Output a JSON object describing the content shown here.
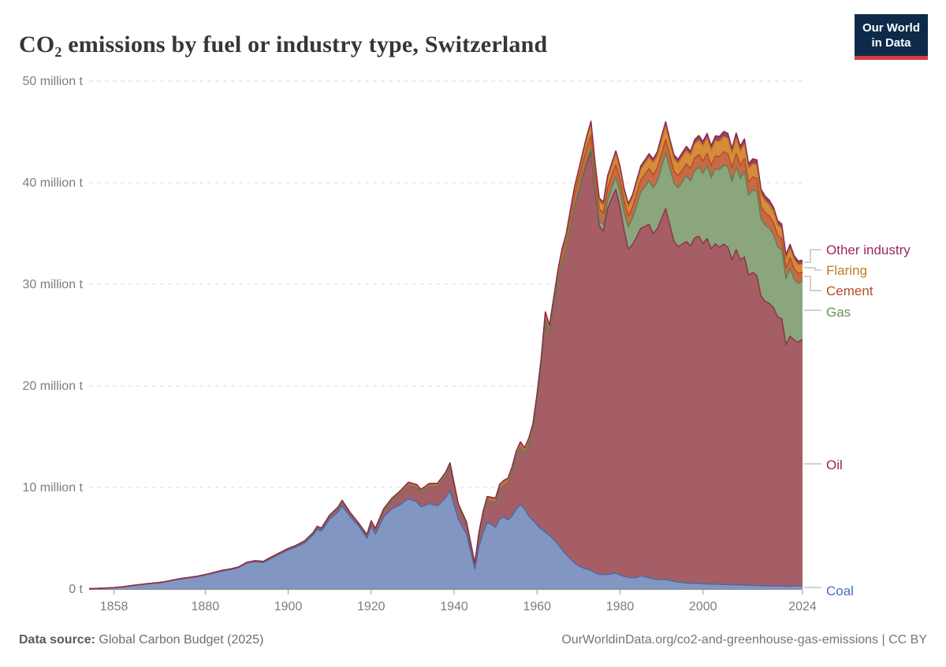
{
  "header": {
    "title": "CO₂ emissions by fuel or industry type, Switzerland"
  },
  "logo": {
    "line1": "Our World",
    "line2": "in Data"
  },
  "footer": {
    "source_label": "Data source:",
    "source_value": "Global Carbon Budget (2025)",
    "link": "OurWorldinData.org/co2-and-greenhouse-gas-emissions",
    "separator": " | ",
    "license": "CC BY"
  },
  "chart_data": {
    "type": "area",
    "stacked": true,
    "title": "CO₂ emissions by fuel or industry type, Switzerland",
    "unit": "million t",
    "ylim": [
      0,
      50
    ],
    "grid": true,
    "legend_position": "right",
    "yticks": [
      {
        "value": 0,
        "label": "0 t"
      },
      {
        "value": 10,
        "label": "10 million t"
      },
      {
        "value": 20,
        "label": "20 million t"
      },
      {
        "value": 30,
        "label": "30 million t"
      },
      {
        "value": 40,
        "label": "40 million t"
      },
      {
        "value": 50,
        "label": "50 million t"
      }
    ],
    "xticks": [
      {
        "value": 1858,
        "label": "1858"
      },
      {
        "value": 1880,
        "label": "1880"
      },
      {
        "value": 1900,
        "label": "1900"
      },
      {
        "value": 1920,
        "label": "1920"
      },
      {
        "value": 1940,
        "label": "1940"
      },
      {
        "value": 1960,
        "label": "1960"
      },
      {
        "value": 1980,
        "label": "1980"
      },
      {
        "value": 2000,
        "label": "2000"
      },
      {
        "value": 2024,
        "label": "2024"
      }
    ],
    "x": [
      1852,
      1854,
      1856,
      1858,
      1860,
      1862,
      1864,
      1866,
      1868,
      1870,
      1872,
      1874,
      1876,
      1878,
      1880,
      1882,
      1884,
      1886,
      1888,
      1890,
      1892,
      1894,
      1896,
      1898,
      1900,
      1902,
      1904,
      1906,
      1907,
      1908,
      1910,
      1912,
      1913,
      1915,
      1917,
      1919,
      1920,
      1921,
      1923,
      1925,
      1927,
      1929,
      1931,
      1932,
      1934,
      1936,
      1938,
      1939,
      1941,
      1943,
      1945,
      1946,
      1947,
      1948,
      1950,
      1951,
      1952,
      1953,
      1954,
      1955,
      1956,
      1957,
      1958,
      1959,
      1960,
      1961,
      1962,
      1963,
      1964,
      1965,
      1966,
      1967,
      1968,
      1969,
      1970,
      1971,
      1972,
      1973,
      1974,
      1975,
      1976,
      1977,
      1978,
      1979,
      1980,
      1981,
      1982,
      1983,
      1984,
      1985,
      1986,
      1987,
      1988,
      1989,
      1990,
      1991,
      1992,
      1993,
      1994,
      1995,
      1996,
      1997,
      1998,
      1999,
      2000,
      2001,
      2002,
      2003,
      2004,
      2005,
      2006,
      2007,
      2008,
      2009,
      2010,
      2011,
      2012,
      2013,
      2014,
      2015,
      2016,
      2017,
      2018,
      2019,
      2020,
      2021,
      2022,
      2023,
      2024
    ],
    "series": [
      {
        "name": "Coal",
        "fill": "#8296c2",
        "stroke": "#51689f",
        "label_color": "#4a6cbe",
        "values": [
          0.03,
          0.06,
          0.09,
          0.13,
          0.22,
          0.32,
          0.42,
          0.52,
          0.58,
          0.68,
          0.85,
          1.0,
          1.1,
          1.22,
          1.38,
          1.58,
          1.78,
          1.92,
          2.1,
          2.55,
          2.7,
          2.62,
          3.05,
          3.45,
          3.85,
          4.15,
          4.55,
          5.3,
          5.9,
          5.7,
          6.9,
          7.6,
          8.2,
          7.1,
          6.2,
          5.0,
          6.2,
          5.4,
          7.1,
          7.9,
          8.3,
          8.9,
          8.6,
          8.1,
          8.4,
          8.2,
          9.0,
          9.7,
          6.9,
          5.4,
          2.0,
          4.2,
          5.6,
          6.6,
          6.1,
          6.9,
          7.1,
          6.8,
          7.2,
          7.9,
          8.3,
          7.9,
          7.2,
          6.8,
          6.3,
          5.9,
          5.6,
          5.3,
          4.9,
          4.4,
          3.9,
          3.4,
          3.0,
          2.6,
          2.3,
          2.1,
          1.95,
          1.85,
          1.6,
          1.45,
          1.4,
          1.45,
          1.5,
          1.55,
          1.4,
          1.25,
          1.15,
          1.1,
          1.15,
          1.3,
          1.2,
          1.1,
          1.0,
          0.95,
          0.95,
          0.95,
          0.85,
          0.75,
          0.7,
          0.65,
          0.6,
          0.58,
          0.56,
          0.54,
          0.52,
          0.5,
          0.48,
          0.48,
          0.46,
          0.45,
          0.44,
          0.42,
          0.42,
          0.4,
          0.4,
          0.38,
          0.36,
          0.35,
          0.33,
          0.32,
          0.32,
          0.3,
          0.3,
          0.3,
          0.26,
          0.28,
          0.3,
          0.3,
          0.3
        ]
      },
      {
        "name": "Oil",
        "fill": "#a55e66",
        "stroke": "#8d3544",
        "label_color": "#8d2f41",
        "values": [
          0,
          0,
          0,
          0,
          0,
          0.01,
          0.01,
          0.01,
          0.02,
          0.02,
          0.02,
          0.03,
          0.03,
          0.03,
          0.04,
          0.04,
          0.05,
          0.05,
          0.06,
          0.06,
          0.07,
          0.07,
          0.08,
          0.09,
          0.1,
          0.12,
          0.14,
          0.17,
          0.19,
          0.2,
          0.28,
          0.33,
          0.38,
          0.3,
          0.22,
          0.28,
          0.4,
          0.45,
          0.6,
          0.8,
          1.05,
          1.25,
          1.35,
          1.4,
          1.65,
          1.85,
          2.1,
          2.3,
          1.2,
          0.9,
          0.4,
          1.1,
          1.7,
          2.1,
          2.4,
          2.9,
          3.1,
          3.6,
          4.3,
          5.1,
          5.6,
          5.4,
          7.0,
          8.8,
          12.2,
          16.0,
          20.8,
          19.8,
          22.8,
          25.8,
          28.2,
          30.0,
          32.5,
          35.0,
          36.8,
          38.5,
          40.0,
          41.2,
          37.5,
          34.3,
          33.8,
          36.0,
          37.0,
          37.8,
          36.2,
          34.0,
          32.3,
          32.8,
          33.5,
          34.2,
          34.5,
          34.8,
          34.0,
          34.5,
          35.5,
          36.5,
          35.0,
          33.5,
          33.0,
          33.3,
          33.6,
          33.2,
          34.0,
          34.2,
          33.5,
          34.0,
          33.0,
          33.5,
          33.2,
          33.5,
          33.2,
          32.0,
          33.0,
          32.0,
          32.3,
          30.5,
          30.8,
          30.5,
          28.5,
          28.0,
          27.8,
          27.4,
          26.5,
          26.3,
          23.8,
          24.6,
          24.2,
          24.0,
          24.3
        ]
      },
      {
        "name": "Gas",
        "fill": "#8ba57d",
        "stroke": "#5e8253",
        "label_color": "#659158",
        "values": [
          0,
          0,
          0,
          0,
          0,
          0,
          0,
          0,
          0,
          0,
          0,
          0,
          0,
          0,
          0,
          0,
          0,
          0,
          0,
          0,
          0,
          0,
          0,
          0,
          0,
          0,
          0,
          0,
          0,
          0,
          0,
          0,
          0,
          0,
          0,
          0,
          0,
          0,
          0,
          0,
          0,
          0,
          0,
          0,
          0,
          0,
          0,
          0,
          0,
          0,
          0,
          0,
          0,
          0,
          0,
          0,
          0,
          0,
          0,
          0,
          0,
          0,
          0,
          0,
          0,
          0,
          0,
          0,
          0,
          0,
          0,
          0,
          0.05,
          0.08,
          0.1,
          0.15,
          0.2,
          0.3,
          0.4,
          0.5,
          0.65,
          0.8,
          1.0,
          1.2,
          1.5,
          1.8,
          2.2,
          2.6,
          3.1,
          3.6,
          3.9,
          4.3,
          4.5,
          4.7,
          5.1,
          5.5,
          5.6,
          5.7,
          5.8,
          6.1,
          6.5,
          6.4,
          6.6,
          6.8,
          6.9,
          7.2,
          7.0,
          7.4,
          7.6,
          7.8,
          7.9,
          7.7,
          8.1,
          8.0,
          8.4,
          7.9,
          8.1,
          8.3,
          7.6,
          7.5,
          7.4,
          7.2,
          6.9,
          6.8,
          6.5,
          6.7,
          6.0,
          5.8,
          5.7
        ]
      },
      {
        "name": "Cement",
        "fill": "#c96a44",
        "stroke": "#b14f25",
        "label_color": "#b54c26",
        "values": [
          0,
          0,
          0,
          0,
          0,
          0,
          0,
          0,
          0,
          0,
          0,
          0,
          0,
          0,
          0,
          0,
          0,
          0,
          0,
          0.02,
          0.02,
          0.03,
          0.03,
          0.04,
          0.05,
          0.05,
          0.06,
          0.08,
          0.09,
          0.09,
          0.11,
          0.13,
          0.15,
          0.1,
          0.07,
          0.08,
          0.12,
          0.12,
          0.18,
          0.24,
          0.3,
          0.36,
          0.34,
          0.3,
          0.34,
          0.35,
          0.4,
          0.42,
          0.3,
          0.28,
          0.15,
          0.28,
          0.35,
          0.4,
          0.45,
          0.5,
          0.5,
          0.52,
          0.55,
          0.58,
          0.6,
          0.6,
          0.62,
          0.66,
          0.72,
          0.8,
          0.88,
          0.86,
          0.92,
          0.95,
          1.0,
          1.05,
          1.05,
          1.1,
          1.15,
          1.2,
          1.25,
          1.35,
          1.25,
          1.15,
          1.15,
          1.2,
          1.2,
          1.25,
          1.2,
          1.15,
          1.1,
          1.1,
          1.15,
          1.2,
          1.2,
          1.2,
          1.25,
          1.3,
          1.3,
          1.3,
          1.25,
          1.2,
          1.2,
          1.2,
          1.15,
          1.2,
          1.25,
          1.25,
          1.2,
          1.2,
          1.2,
          1.25,
          1.3,
          1.3,
          1.3,
          1.35,
          1.35,
          1.3,
          1.3,
          1.3,
          1.3,
          1.3,
          1.25,
          1.2,
          1.2,
          1.15,
          1.15,
          1.1,
          1.05,
          1.05,
          1.0,
          0.95,
          0.9
        ]
      },
      {
        "name": "Flaring",
        "fill": "#d68c3c",
        "stroke": "#c07a1e",
        "label_color": "#bd7c24",
        "values": [
          0,
          0,
          0,
          0,
          0,
          0,
          0,
          0,
          0,
          0,
          0,
          0,
          0,
          0,
          0,
          0,
          0,
          0,
          0,
          0,
          0,
          0,
          0,
          0,
          0,
          0,
          0,
          0,
          0,
          0,
          0,
          0,
          0,
          0,
          0,
          0,
          0,
          0,
          0,
          0,
          0,
          0,
          0,
          0,
          0,
          0,
          0,
          0,
          0,
          0,
          0,
          0,
          0,
          0,
          0,
          0,
          0,
          0,
          0,
          0,
          0,
          0,
          0,
          0,
          0,
          0,
          0,
          0,
          0,
          0.1,
          0.2,
          0.3,
          0.4,
          0.5,
          0.6,
          0.7,
          0.9,
          1.0,
          0.9,
          0.8,
          0.8,
          0.9,
          0.9,
          1.0,
          1.0,
          0.9,
          0.9,
          0.9,
          1.0,
          1.0,
          1.1,
          1.1,
          1.2,
          1.2,
          1.3,
          1.3,
          1.2,
          1.2,
          1.2,
          1.3,
          1.3,
          1.3,
          1.4,
          1.4,
          1.5,
          1.5,
          1.5,
          1.5,
          1.5,
          1.5,
          1.5,
          1.4,
          1.5,
          1.4,
          1.4,
          1.3,
          1.3,
          1.3,
          1.2,
          1.2,
          1.1,
          1.1,
          1.0,
          1.0,
          0.9,
          0.9,
          0.9,
          0.85,
          0.8
        ]
      },
      {
        "name": "Other industry",
        "fill": "#9b3f63",
        "stroke": "#8c2a55",
        "label_color": "#9a2862",
        "values": [
          0,
          0,
          0,
          0,
          0,
          0,
          0,
          0,
          0,
          0,
          0,
          0,
          0,
          0,
          0,
          0,
          0,
          0,
          0,
          0,
          0,
          0,
          0,
          0,
          0,
          0,
          0,
          0,
          0,
          0,
          0,
          0,
          0,
          0,
          0,
          0,
          0,
          0,
          0,
          0,
          0,
          0,
          0,
          0,
          0,
          0,
          0,
          0,
          0,
          0,
          0,
          0,
          0,
          0,
          0,
          0,
          0,
          0,
          0,
          0,
          0,
          0,
          0,
          0,
          0,
          0,
          0,
          0,
          0,
          0.1,
          0.15,
          0.2,
          0.22,
          0.25,
          0.28,
          0.3,
          0.33,
          0.35,
          0.33,
          0.3,
          0.3,
          0.32,
          0.33,
          0.35,
          0.33,
          0.3,
          0.3,
          0.3,
          0.32,
          0.35,
          0.35,
          0.36,
          0.38,
          0.4,
          0.42,
          0.45,
          0.42,
          0.4,
          0.4,
          0.4,
          0.42,
          0.42,
          0.44,
          0.45,
          0.45,
          0.46,
          0.46,
          0.48,
          0.5,
          0.5,
          0.52,
          0.52,
          0.52,
          0.5,
          0.52,
          0.5,
          0.5,
          0.5,
          0.48,
          0.46,
          0.46,
          0.44,
          0.44,
          0.42,
          0.4,
          0.4,
          0.4,
          0.38,
          0.38
        ]
      }
    ],
    "legend": [
      {
        "label": "Other industry",
        "color": "#9a2862"
      },
      {
        "label": "Flaring",
        "color": "#bd7c24"
      },
      {
        "label": "Cement",
        "color": "#b54c26"
      },
      {
        "label": "Gas",
        "color": "#659158"
      },
      {
        "label": "Oil",
        "color": "#8d2f41"
      },
      {
        "label": "Coal",
        "color": "#4a6cbe"
      }
    ]
  }
}
